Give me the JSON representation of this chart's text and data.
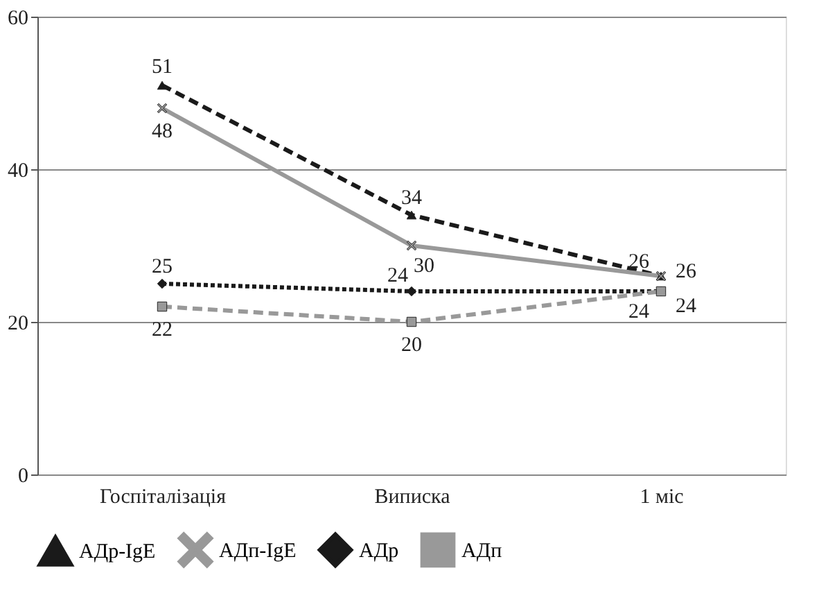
{
  "chart_data": {
    "type": "line",
    "categories": [
      "Госпіталізація",
      "Виписка",
      "1 міс"
    ],
    "series": [
      {
        "name": "АДр-IgE",
        "color": "#1a1a1a",
        "values": [
          51,
          34,
          26
        ],
        "marker": "triangle",
        "line_style": "dashed"
      },
      {
        "name": "АДп-IgE",
        "color": "#999999",
        "values": [
          48,
          30,
          26
        ],
        "marker": "cross",
        "line_style": "solid"
      },
      {
        "name": "АДр",
        "color": "#1a1a1a",
        "values": [
          25,
          24,
          24
        ],
        "marker": "diamond",
        "line_style": "dotted"
      },
      {
        "name": "АДп",
        "color": "#999999",
        "values": [
          22,
          20,
          24
        ],
        "marker": "square",
        "line_style": "dashed"
      }
    ],
    "ylim": [
      0,
      60
    ],
    "yticks": [
      0,
      20,
      40,
      60
    ],
    "grid": "y",
    "legend": "bottom",
    "data_labels": true
  }
}
